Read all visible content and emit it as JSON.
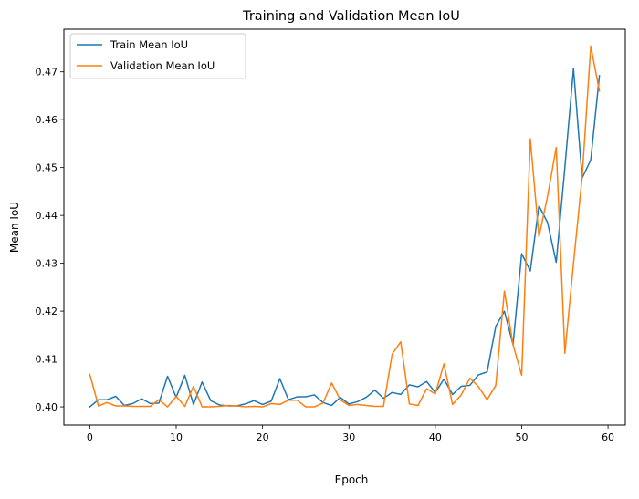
{
  "chart_data": {
    "type": "line",
    "title": "Training and Validation Mean IoU",
    "xlabel": "Epoch",
    "ylabel": "Mean IoU",
    "xlim": [
      -3,
      62
    ],
    "ylim": [
      0.3962,
      0.4789
    ],
    "xticks": [
      0,
      10,
      20,
      30,
      40,
      50,
      60
    ],
    "yticks": [
      0.4,
      0.41,
      0.42,
      0.43,
      0.44,
      0.45,
      0.46,
      0.47
    ],
    "grid": false,
    "legend_position": "top-left",
    "x": [
      0,
      1,
      2,
      3,
      4,
      5,
      6,
      7,
      8,
      9,
      10,
      11,
      12,
      13,
      14,
      15,
      16,
      17,
      18,
      19,
      20,
      21,
      22,
      23,
      24,
      25,
      26,
      27,
      28,
      29,
      30,
      31,
      32,
      33,
      34,
      35,
      36,
      37,
      38,
      39,
      40,
      41,
      42,
      43,
      44,
      45,
      46,
      47,
      48,
      49,
      50,
      51,
      52,
      53,
      54,
      55,
      56,
      57,
      58,
      59
    ],
    "series": [
      {
        "name": "Train Mean IoU",
        "color": "#1f77b4",
        "values": [
          0.4,
          0.4015,
          0.4015,
          0.4022,
          0.4003,
          0.4007,
          0.4017,
          0.4007,
          0.4008,
          0.4064,
          0.402,
          0.4066,
          0.4005,
          0.4052,
          0.4013,
          0.4004,
          0.4002,
          0.4002,
          0.4006,
          0.4013,
          0.4005,
          0.4012,
          0.4059,
          0.4015,
          0.4021,
          0.4021,
          0.4025,
          0.4009,
          0.4003,
          0.402,
          0.4006,
          0.4011,
          0.402,
          0.4035,
          0.4018,
          0.403,
          0.4026,
          0.4046,
          0.4042,
          0.4053,
          0.403,
          0.4058,
          0.4026,
          0.4043,
          0.4045,
          0.4067,
          0.4073,
          0.4168,
          0.42,
          0.413,
          0.432,
          0.4284,
          0.442,
          0.4385,
          0.4302,
          0.45,
          0.4707,
          0.4478,
          0.4516,
          0.4692
        ]
      },
      {
        "name": "Validation Mean IoU",
        "color": "#ff7f0e",
        "values": [
          0.4068,
          0.4002,
          0.4009,
          0.4002,
          0.4002,
          0.4001,
          0.4001,
          0.4001,
          0.4015,
          0.4,
          0.4022,
          0.4001,
          0.4043,
          0.4,
          0.4,
          0.4001,
          0.4003,
          0.4002,
          0.4,
          0.4001,
          0.4,
          0.4007,
          0.4005,
          0.4014,
          0.4014,
          0.4,
          0.4,
          0.4008,
          0.405,
          0.4015,
          0.4003,
          0.4005,
          0.4003,
          0.4001,
          0.4001,
          0.411,
          0.4136,
          0.4006,
          0.4003,
          0.4038,
          0.4027,
          0.409,
          0.4005,
          0.4025,
          0.406,
          0.4042,
          0.4015,
          0.4045,
          0.4242,
          0.413,
          0.4066,
          0.456,
          0.4355,
          0.444,
          0.4542,
          0.4112,
          0.43,
          0.448,
          0.4754,
          0.466
        ]
      }
    ]
  }
}
